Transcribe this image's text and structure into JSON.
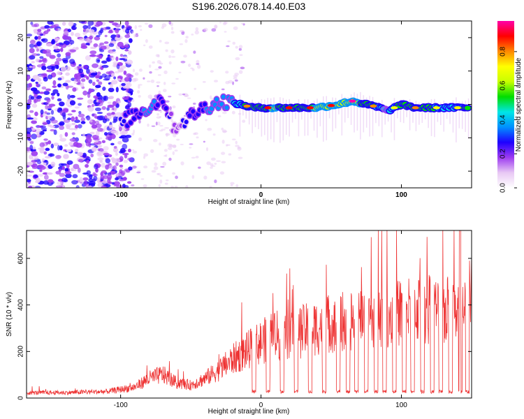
{
  "title": "S196.2026.078.14.40.E03",
  "chart_data": [
    {
      "type": "heatmap",
      "name": "spectrogram",
      "xlabel": "Height of straight line (km)",
      "ylabel": "Frequency (Hz)",
      "xlim": [
        -167,
        150
      ],
      "ylim": [
        -25,
        25
      ],
      "x_ticks": [
        -100,
        0,
        100
      ],
      "y_ticks": [
        -20,
        -10,
        0,
        10,
        20
      ],
      "x_tick_labels": [
        "-100",
        "0",
        "100"
      ],
      "y_tick_labels": [
        "-20",
        "-10",
        "0",
        "10",
        "20"
      ],
      "colorbar": {
        "label": "Normalized spectral amplitude",
        "range": [
          0,
          0.98
        ],
        "ticks": [
          0,
          0.2,
          0.4,
          0.6,
          0.8
        ],
        "tick_labels": [
          "0.0",
          "0.2",
          "0.4",
          "0.6",
          "0.8"
        ],
        "colors": [
          "#ffffff",
          "#e8c8f4",
          "#9d3cf0",
          "#1e00ff",
          "#0090ff",
          "#00e6e6",
          "#00dd00",
          "#c8ff00",
          "#ffff00",
          "#ff8800",
          "#ff0000",
          "#ff00aa"
        ]
      },
      "ridge_track": {
        "x": [
          -100,
          -90,
          -80,
          -70,
          -62,
          -55,
          -45,
          -35,
          -25,
          -15,
          -5,
          10,
          25,
          40,
          55,
          65,
          75,
          85,
          90,
          95,
          100,
          110,
          125,
          140,
          148
        ],
        "y": [
          -6,
          -3,
          -1,
          2,
          -7,
          -5,
          -2,
          0,
          1,
          0,
          -1,
          -1,
          -1,
          -1,
          0,
          1,
          0,
          -1,
          -2,
          -1,
          0,
          -1,
          -1,
          -1,
          -1
        ],
        "peak_amplitude": [
          0.35,
          0.45,
          0.5,
          0.45,
          0.3,
          0.35,
          0.45,
          0.5,
          0.55,
          0.7,
          0.85,
          0.9,
          0.85,
          0.9,
          0.95,
          0.95,
          0.85,
          0.7,
          0.6,
          0.7,
          0.8,
          0.8,
          0.75,
          0.7,
          0.8
        ]
      }
    },
    {
      "type": "line",
      "name": "snr",
      "xlabel": "Height of straight line (km)",
      "ylabel": "SNR (10 * v/v)",
      "xlim": [
        -167,
        150
      ],
      "ylim": [
        0,
        720
      ],
      "x_ticks": [
        -100,
        0,
        100
      ],
      "y_ticks": [
        0,
        200,
        400,
        600
      ],
      "x_tick_labels": [
        "-100",
        "0",
        "100"
      ],
      "y_tick_labels": [
        "0",
        "200",
        "400",
        "600"
      ],
      "color": "#ee3333",
      "envelope": {
        "x": [
          -167,
          -140,
          -110,
          -90,
          -80,
          -70,
          -60,
          -50,
          -40,
          -30,
          -20,
          -10,
          0,
          10,
          20,
          30,
          40,
          50,
          60,
          70,
          80,
          90,
          100,
          110,
          120,
          130,
          140,
          145,
          150
        ],
        "y": [
          25,
          25,
          30,
          50,
          90,
          110,
          70,
          60,
          90,
          130,
          180,
          220,
          260,
          290,
          300,
          310,
          330,
          350,
          360,
          370,
          380,
          390,
          400,
          420,
          410,
          400,
          420,
          550,
          480
        ]
      },
      "dropouts_x": [
        -5,
        5,
        15,
        25,
        35,
        45,
        55,
        62,
        68,
        75,
        82,
        88,
        95,
        102,
        108,
        115,
        122,
        128,
        135,
        142,
        147
      ],
      "max_value": 720
    }
  ]
}
